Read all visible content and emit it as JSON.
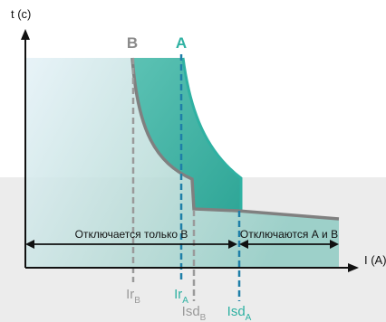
{
  "axes": {
    "y_label": "t (c)",
    "x_label": "I (A)"
  },
  "curves": {
    "b_label": "B",
    "a_label": "A"
  },
  "zones": {
    "only_b": "Отключается только В",
    "both": "Отключаются А и В"
  },
  "markers": {
    "ir_b": {
      "main": "Ir",
      "sub": "B"
    },
    "ir_a": {
      "main": "Ir",
      "sub": "A"
    },
    "isd_b": {
      "main": "Isd",
      "sub": "B"
    },
    "isd_a": {
      "main": "Isd",
      "sub": "A"
    }
  },
  "colors": {
    "curve_a": "#2fb1a2",
    "curve_b": "#808080",
    "marker_b": "#9a9a9a",
    "marker_a": "#1e7fa8",
    "label_a": "#2fb1a2",
    "label_b": "#8a8a8a"
  }
}
